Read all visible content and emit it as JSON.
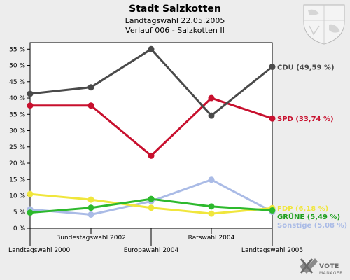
{
  "header": {
    "title": "Stadt Salzkotten",
    "subtitle1": "Landtagswahl 22.05.2005",
    "subtitle2": "Verlauf 006 - Salzkotten II"
  },
  "branding": {
    "name": "VOTE",
    "sub": "MANAGER"
  },
  "chart_data": {
    "type": "line",
    "title": "Stadt Salzkotten",
    "categories": [
      "Landtagswahl 2000",
      "Bundestagswahl 2002",
      "Europawahl 2004",
      "Ratswahl 2004",
      "Landtagswahl 2005"
    ],
    "ylim": [
      0,
      57
    ],
    "yticks": [
      "0 %",
      "5 %",
      "10 %",
      "15 %",
      "20 %",
      "25 %",
      "30 %",
      "35 %",
      "40 %",
      "45 %",
      "50 %",
      "55 %"
    ],
    "grid": false,
    "series": [
      {
        "name": "CDU",
        "label": "CDU (49,59 %)",
        "color": "#4a4a4a",
        "values": [
          41.3,
          43.3,
          55.0,
          34.6,
          49.59
        ]
      },
      {
        "name": "SPD",
        "label": "SPD (33,74 %)",
        "color": "#c8102e",
        "values": [
          37.7,
          37.7,
          22.3,
          40.0,
          33.74
        ]
      },
      {
        "name": "FDP",
        "label": "FDP (6,18 %)",
        "color": "#f0e63c",
        "values": [
          10.5,
          8.8,
          6.3,
          4.5,
          6.18
        ]
      },
      {
        "name": "GRÜNE",
        "label": "GRÜNE (5,49 %)",
        "color": "#2db92d",
        "values": [
          4.8,
          6.3,
          9.0,
          6.7,
          5.49
        ]
      },
      {
        "name": "Sonstige",
        "label": "Sonstige (5,08 %)",
        "color": "#aabbe6",
        "values": [
          5.8,
          4.2,
          8.3,
          14.9,
          5.08
        ]
      }
    ]
  }
}
